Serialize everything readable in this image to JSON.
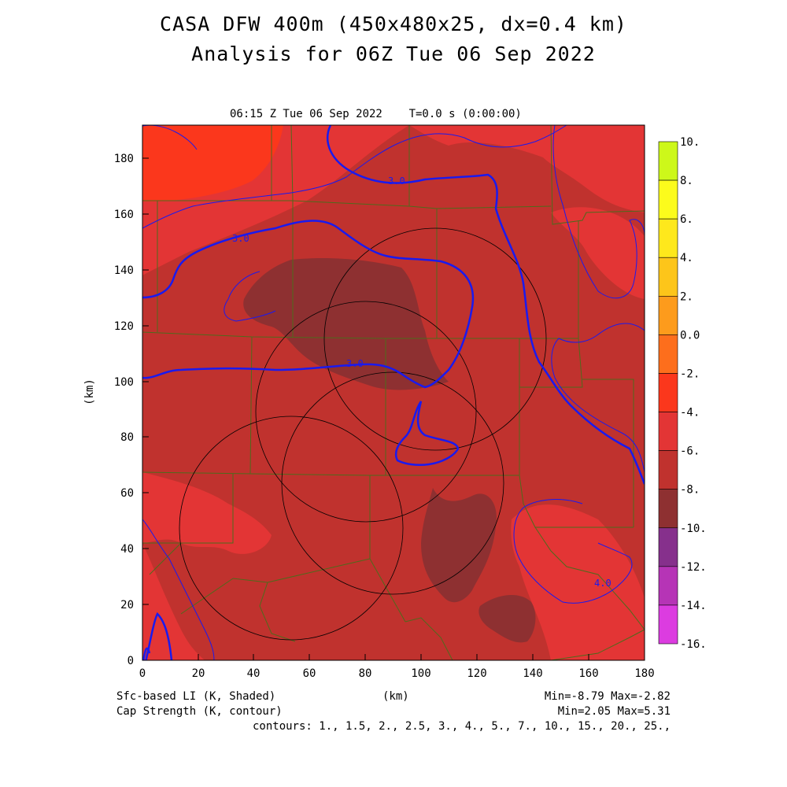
{
  "title_line1": "CASA DFW 400m (450x480x25, dx=0.4 km)",
  "title_line2": "Analysis for 06Z Tue 06 Sep 2022",
  "subtitle": "06:15 Z Tue 06 Sep 2022    T=0.0 s (0:00:00)",
  "footer": {
    "left1": "Sfc-based LI (K, Shaded)",
    "left2": "Cap Strength (K, contour)",
    "center": "(km)",
    "right1": "Min=-8.79 Max=-2.82",
    "right2": "Min=2.05 Max=5.31",
    "contours": "contours: 1., 1.5, 2., 2.5, 3., 4., 5., 7., 10., 15., 20., 25.,"
  },
  "chart_data": {
    "type": "heatmap",
    "xlabel": "(km)",
    "ylabel": "(km)",
    "xlim": [
      0,
      180
    ],
    "ylim": [
      0,
      192
    ],
    "xticks": [
      "0",
      "20",
      "40",
      "60",
      "80",
      "100",
      "120",
      "140",
      "160",
      "180"
    ],
    "yticks": [
      "0",
      "20",
      "40",
      "60",
      "80",
      "100",
      "120",
      "140",
      "160",
      "180"
    ],
    "shaded_field": "Sfc-based LI (K, Shaded)",
    "shaded_min": -8.79,
    "shaded_max": -2.82,
    "contour_field": "Cap Strength (K, contour)",
    "contour_min": 2.05,
    "contour_max": 5.31,
    "contour_labels": [
      {
        "text": "3.0",
        "x": 91,
        "y": 172
      },
      {
        "text": "3.0",
        "x": 36,
        "y": 152
      },
      {
        "text": "3.0",
        "x": 77,
        "y": 106
      },
      {
        "text": "4.0",
        "x": 165,
        "y": 28
      }
    ],
    "colorbar": {
      "labels": [
        "10.",
        "8.",
        "6.",
        "4.",
        "2.",
        "0.0",
        "-2.",
        "-4.",
        "-6.",
        "-8.",
        "-10.",
        "-12.",
        "-14.",
        "-16."
      ],
      "colors": [
        "#a2e01c",
        "#cdf81a",
        "#fcfb1c",
        "#fee81c",
        "#fdc51a",
        "#fd9b1c",
        "#fd6e1c",
        "#fb371c",
        "#e33535",
        "#c0322e",
        "#8e3031",
        "#86308c",
        "#b634b6",
        "#dc3ce0"
      ]
    },
    "radar_rings": [
      {
        "cx_km": 80,
        "cy_km": 89,
        "r_km": 38
      },
      {
        "cx_km": 106,
        "cy_km": 115,
        "r_km": 40
      },
      {
        "cx_km": 53,
        "cy_km": 48,
        "r_km": 40
      },
      {
        "cx_km": 90,
        "cy_km": 62,
        "r_km": 40
      }
    ]
  }
}
